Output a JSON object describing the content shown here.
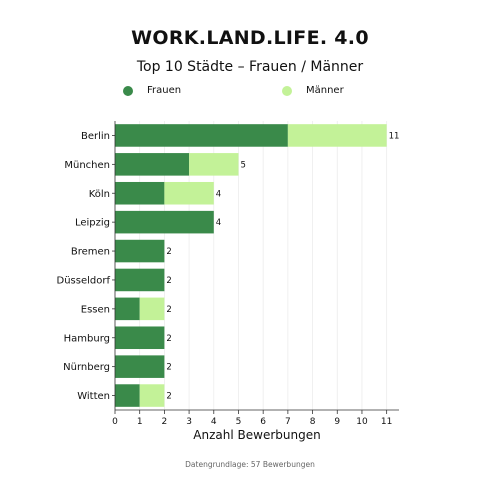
{
  "title": "WORK.LAND.LIFE. 4.0",
  "subtitle": "Top 10 Städte – Frauen / Männer",
  "footer": "Datengrundlage: 57 Bewerbungen",
  "colors": {
    "frauen": "#3a8a4a",
    "maenner": "#c3f298"
  },
  "chart_data": {
    "type": "bar",
    "orientation": "horizontal",
    "stacked": true,
    "categories": [
      "Berlin",
      "München",
      "Köln",
      "Leipzig",
      "Bremen",
      "Düsseldorf",
      "Essen",
      "Hamburg",
      "Nürnberg",
      "Witten"
    ],
    "series": [
      {
        "name": "Frauen",
        "values": [
          7,
          3,
          2,
          4,
          2,
          2,
          1,
          2,
          2,
          1
        ]
      },
      {
        "name": "Männer",
        "values": [
          4,
          2,
          2,
          0,
          0,
          0,
          1,
          0,
          0,
          1
        ]
      }
    ],
    "totals": [
      11,
      5,
      4,
      4,
      2,
      2,
      2,
      2,
      2,
      2
    ],
    "xlabel": "Anzahl Bewerbungen",
    "ylabel": "",
    "xlim": [
      0,
      11.5
    ],
    "xticks": [
      0,
      1,
      2,
      3,
      4,
      5,
      6,
      7,
      8,
      9,
      10,
      11
    ],
    "grid": "vertical",
    "legend": "top"
  }
}
